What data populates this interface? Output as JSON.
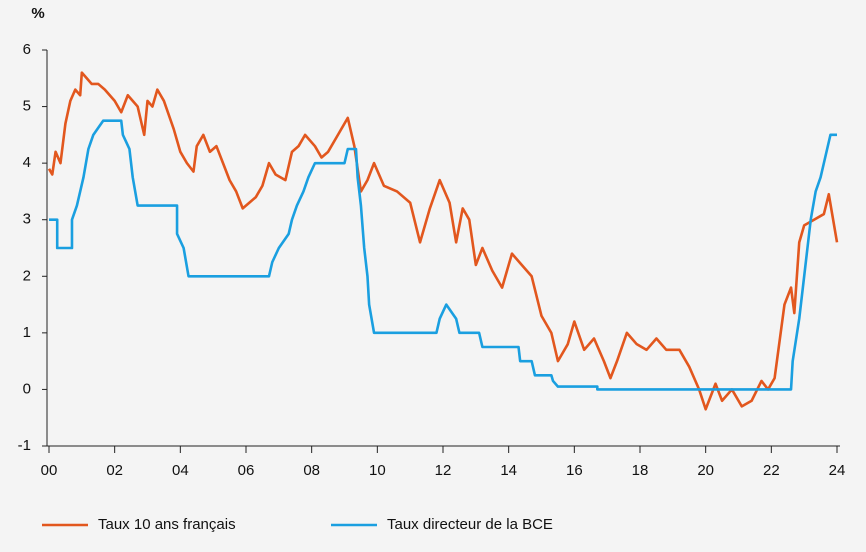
{
  "chart_data": {
    "type": "line",
    "y_label": "%",
    "xlim": [
      0,
      24
    ],
    "xticks": [
      {
        "value": 0,
        "label": "00"
      },
      {
        "value": 2,
        "label": "02"
      },
      {
        "value": 4,
        "label": "04"
      },
      {
        "value": 6,
        "label": "06"
      },
      {
        "value": 8,
        "label": "08"
      },
      10,
      12,
      14,
      16,
      18,
      20,
      22,
      24
    ],
    "ylim": [
      -1,
      6
    ],
    "yticks": [
      -1,
      0,
      1,
      2,
      3,
      4,
      5,
      6
    ],
    "grid": false,
    "legend": "bottom",
    "series": [
      {
        "name": "Taux 10 ans français",
        "color": "#e2571e",
        "x": [
          0,
          0.1,
          0.2,
          0.35,
          0.5,
          0.65,
          0.8,
          0.95,
          1.0,
          1.15,
          1.3,
          1.5,
          1.7,
          2.0,
          2.2,
          2.4,
          2.55,
          2.7,
          2.9,
          3.0,
          3.15,
          3.3,
          3.5,
          3.8,
          4.0,
          4.2,
          4.4,
          4.5,
          4.7,
          4.9,
          5.1,
          5.3,
          5.5,
          5.7,
          5.9,
          6.1,
          6.3,
          6.5,
          6.7,
          6.9,
          7.2,
          7.4,
          7.6,
          7.8,
          8.1,
          8.3,
          8.5,
          8.8,
          9.1,
          9.3,
          9.5,
          9.7,
          9.9,
          10.2,
          10.6,
          11.0,
          11.3,
          11.6,
          11.9,
          12.2,
          12.4,
          12.6,
          12.8,
          13.0,
          13.2,
          13.5,
          13.8,
          14.1,
          14.4,
          14.7,
          15.0,
          15.3,
          15.5,
          15.8,
          16.0,
          16.3,
          16.6,
          16.9,
          17.1,
          17.3,
          17.6,
          17.9,
          18.2,
          18.5,
          18.8,
          19.2,
          19.5,
          19.8,
          20.0,
          20.3,
          20.5,
          20.8,
          21.1,
          21.4,
          21.7,
          21.9,
          22.1,
          22.4,
          22.6,
          22.7,
          22.85,
          23.0,
          23.3,
          23.6,
          23.75,
          24.0
        ],
        "values": [
          3.9,
          3.8,
          4.2,
          4.0,
          4.7,
          5.1,
          5.3,
          5.2,
          5.6,
          5.5,
          5.4,
          5.4,
          5.3,
          5.1,
          4.9,
          5.2,
          5.1,
          5.0,
          4.5,
          5.1,
          5.0,
          5.3,
          5.1,
          4.6,
          4.2,
          4.0,
          3.85,
          4.3,
          4.5,
          4.2,
          4.3,
          4.0,
          3.7,
          3.5,
          3.2,
          3.3,
          3.4,
          3.6,
          4.0,
          3.8,
          3.7,
          4.2,
          4.3,
          4.5,
          4.3,
          4.1,
          4.2,
          4.5,
          4.8,
          4.3,
          3.5,
          3.7,
          4.0,
          3.6,
          3.5,
          3.3,
          2.6,
          3.2,
          3.7,
          3.3,
          2.6,
          3.2,
          3.0,
          2.2,
          2.5,
          2.1,
          1.8,
          2.4,
          2.2,
          2.0,
          1.3,
          1.0,
          0.5,
          0.8,
          1.2,
          0.7,
          0.9,
          0.5,
          0.2,
          0.5,
          1.0,
          0.8,
          0.7,
          0.9,
          0.7,
          0.7,
          0.4,
          0.0,
          -0.35,
          0.1,
          -0.2,
          0.0,
          -0.3,
          -0.2,
          0.15,
          0.0,
          0.2,
          1.5,
          1.8,
          1.35,
          2.6,
          2.9,
          3.0,
          3.1,
          3.45,
          2.6
        ]
      },
      {
        "name": "Taux directeur de la BCE",
        "color": "#1a9fe0",
        "x": [
          0,
          0.25,
          0.25,
          0.7,
          0.7,
          0.85,
          0.95,
          1.05,
          1.2,
          1.35,
          1.65,
          2.2,
          2.25,
          2.45,
          2.55,
          2.7,
          3.9,
          3.9,
          4.1,
          4.25,
          6.7,
          6.8,
          7.0,
          7.3,
          7.4,
          7.55,
          7.75,
          7.9,
          8.1,
          9.0,
          9.1,
          9.35,
          9.4,
          9.5,
          9.6,
          9.7,
          9.75,
          9.9,
          11.8,
          11.9,
          12.1,
          12.4,
          12.5,
          13.1,
          13.2,
          14.3,
          14.35,
          14.7,
          14.8,
          15.3,
          15.35,
          15.5,
          16.7,
          16.7,
          22.6,
          22.65,
          22.85,
          23.0,
          23.1,
          23.2,
          23.35,
          23.5,
          23.6,
          23.7,
          23.8,
          24.0
        ],
        "values": [
          3.0,
          3.0,
          2.5,
          2.5,
          3.0,
          3.25,
          3.5,
          3.75,
          4.25,
          4.5,
          4.75,
          4.75,
          4.5,
          4.25,
          3.75,
          3.25,
          3.25,
          2.75,
          2.5,
          2.0,
          2.0,
          2.25,
          2.5,
          2.75,
          3.0,
          3.25,
          3.5,
          3.75,
          4.0,
          4.0,
          4.25,
          4.25,
          3.75,
          3.25,
          2.5,
          2.0,
          1.5,
          1.0,
          1.0,
          1.25,
          1.5,
          1.25,
          1.0,
          1.0,
          0.75,
          0.75,
          0.5,
          0.5,
          0.25,
          0.25,
          0.15,
          0.05,
          0.05,
          0.0,
          0.0,
          0.5,
          1.25,
          2.0,
          2.5,
          3.0,
          3.5,
          3.75,
          4.0,
          4.25,
          4.5,
          4.5
        ]
      }
    ]
  }
}
